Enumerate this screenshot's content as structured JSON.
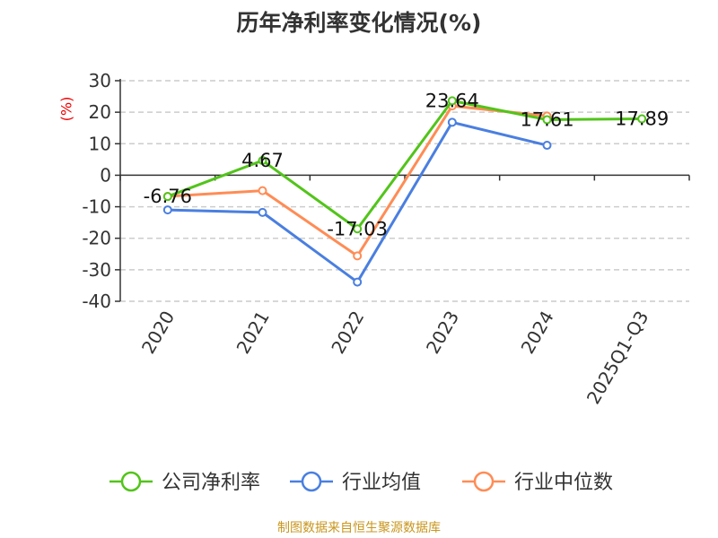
{
  "chart_data": {
    "type": "line",
    "title": "历年净利率变化情况(%)",
    "ylabel": "(%)",
    "xlabel": "",
    "categories": [
      "2020",
      "2021",
      "2022",
      "2023",
      "2024",
      "2025Q1-Q3"
    ],
    "ylim": [
      -40,
      30
    ],
    "yticks": [
      30,
      20,
      10,
      0,
      -10,
      -20,
      -30,
      -40
    ],
    "grid": true,
    "legend_position": "bottom",
    "series": [
      {
        "name": "公司净利率",
        "color": "#52c41a",
        "values": [
          -6.76,
          4.67,
          -17.03,
          23.64,
          17.61,
          17.89
        ],
        "labels": [
          "-6.76",
          "4.67",
          "-17.03",
          "23.64",
          "17.61",
          "17.89"
        ]
      },
      {
        "name": "行业均值",
        "color": "#4a7fe0",
        "values": [
          -11.0,
          -11.8,
          -33.9,
          16.8,
          9.5,
          null
        ]
      },
      {
        "name": "行业中位数",
        "color": "#ff8c55",
        "values": [
          -6.7,
          -4.9,
          -25.6,
          22.0,
          18.8,
          null
        ]
      }
    ]
  },
  "source": "制图数据来自恒生聚源数据库"
}
